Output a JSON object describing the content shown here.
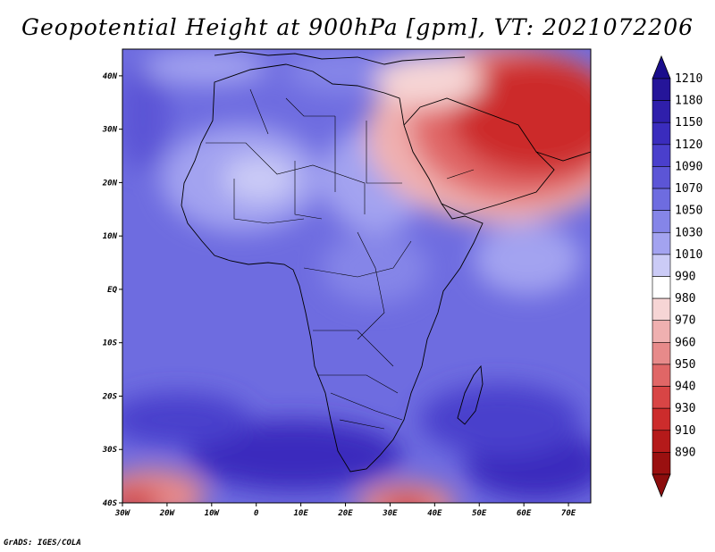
{
  "title": "Geopotential Height at 900hPa [gpm], VT: 2021072206",
  "credit": "GrADS: IGES/COLA",
  "map": {
    "lon_range": [
      -30,
      75
    ],
    "lat_range": [
      -40,
      45
    ],
    "lon_ticks": [
      "30W",
      "20W",
      "10W",
      "0",
      "10E",
      "20E",
      "30E",
      "40E",
      "50E",
      "60E",
      "70E"
    ],
    "lat_ticks": [
      "40N",
      "30N",
      "20N",
      "10N",
      "EQ",
      "10S",
      "20S",
      "30S",
      "40S"
    ]
  },
  "colorbar": {
    "labels": [
      "1210",
      "1180",
      "1150",
      "1120",
      "1090",
      "1070",
      "1050",
      "1030",
      "1010",
      "990",
      "980",
      "970",
      "960",
      "950",
      "940",
      "930",
      "910",
      "890"
    ],
    "top_arrow_color": "#1a0d8c",
    "bottom_arrow_color": "#8c0d0d",
    "colors": [
      "#251599",
      "#2f1fab",
      "#3a2cbd",
      "#4a3fcc",
      "#5c55d6",
      "#6e6ce0",
      "#8585e8",
      "#a3a3f0",
      "#cbcbf6",
      "#ffffff",
      "#f6d5d5",
      "#efb0b0",
      "#e78a8a",
      "#e06666",
      "#d84545",
      "#cc2c2c",
      "#b51a1a",
      "#9a1010"
    ]
  }
}
